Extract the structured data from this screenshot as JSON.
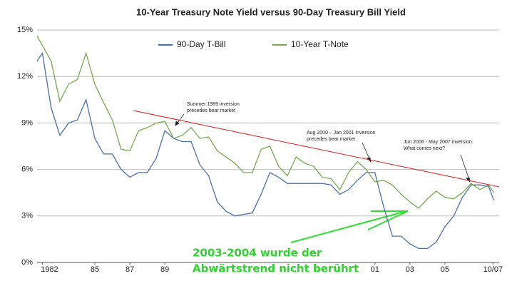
{
  "chart_data": {
    "type": "line",
    "title": "10-Year Treasury Note Yield versus 90-Day Treasury Bill Yield",
    "x": [
      1981.7,
      1982,
      1982.5,
      1983,
      1983.5,
      1984,
      1984.5,
      1985,
      1985.5,
      1986,
      1986.5,
      1987,
      1987.5,
      1988,
      1988.5,
      1989,
      1989.5,
      1990,
      1990.5,
      1991,
      1991.5,
      1992,
      1992.5,
      1993,
      1993.5,
      1994,
      1994.5,
      1995,
      1995.5,
      1996,
      1996.5,
      1997,
      1997.5,
      1998,
      1998.5,
      1999,
      1999.5,
      2000,
      2000.5,
      2001,
      2001.5,
      2002,
      2002.5,
      2003,
      2003.5,
      2004,
      2004.5,
      2005,
      2005.5,
      2006,
      2006.5,
      2007,
      2007.5,
      2007.8
    ],
    "series": [
      {
        "name": "90-Day T-Bill",
        "color": "#4a70aa",
        "values": [
          13,
          13.5,
          10,
          8.2,
          9,
          9.2,
          10.5,
          8,
          7,
          7,
          6,
          5.5,
          5.8,
          5.8,
          6.7,
          8.5,
          8,
          7.8,
          7.8,
          6.3,
          5.6,
          3.9,
          3.3,
          3,
          3.1,
          3.2,
          4.4,
          5.8,
          5.5,
          5.1,
          5.1,
          5.1,
          5.1,
          5.1,
          5,
          4.4,
          4.7,
          5.3,
          5.8,
          5.8,
          3.6,
          1.7,
          1.7,
          1.2,
          0.9,
          0.9,
          1.3,
          2.3,
          3,
          4.2,
          5,
          5,
          4.9,
          4
        ]
      },
      {
        "name": "10-Year T-Note",
        "color": "#78a94f",
        "values": [
          14.6,
          14,
          13,
          10.4,
          11.5,
          11.8,
          13.5,
          11.5,
          10.3,
          9.2,
          7.3,
          7.2,
          8.5,
          8.7,
          9,
          9.1,
          8,
          8.2,
          8.7,
          8,
          8.1,
          7.2,
          6.8,
          6.4,
          5.8,
          5.8,
          7.3,
          7.5,
          6.2,
          5.6,
          6.8,
          6.4,
          6.2,
          5.5,
          5.4,
          4.7,
          5.8,
          6.5,
          6,
          5.2,
          5.3,
          5,
          4.4,
          3.9,
          3.5,
          4.1,
          4.6,
          4.2,
          4.1,
          4.5,
          5.1,
          4.7,
          5,
          4.5
        ]
      }
    ],
    "trend_line": {
      "color": "#d41a1a",
      "x": [
        1987.2,
        2008.1
      ],
      "values": [
        9.8,
        4.88
      ]
    },
    "xlim": [
      1981.7,
      2008.1
    ],
    "xticks": [
      {
        "value": 1982,
        "label": "1982"
      },
      {
        "value": 1985,
        "label": "85"
      },
      {
        "value": 1987,
        "label": "87"
      },
      {
        "value": 1989,
        "label": "89"
      },
      {
        "value": 2001,
        "label": "01"
      },
      {
        "value": 2003,
        "label": "03"
      },
      {
        "value": 2005,
        "label": "05"
      },
      {
        "value": 2007.75,
        "label": "10/07"
      }
    ],
    "ylim": [
      0,
      15
    ],
    "yticks": [
      {
        "value": 0,
        "label": "0%"
      },
      {
        "value": 3,
        "label": "3%"
      },
      {
        "value": 6,
        "label": "6%"
      },
      {
        "value": 9,
        "label": "9%"
      },
      {
        "value": 12,
        "label": "12%"
      },
      {
        "value": 15,
        "label": "15%"
      }
    ],
    "grid": true,
    "annotations": [
      [
        "Summer 1989 inversion",
        "precedes bear market"
      ],
      [
        "Aug 2000 – Jan 2001 inversion",
        "precedes bear market"
      ],
      [
        "Jun 2006 - May 2007 inversion.",
        "What comes next?"
      ]
    ],
    "note": [
      "2003-2004  wurde der",
      "Abwärtstrend nicht berührt"
    ]
  }
}
